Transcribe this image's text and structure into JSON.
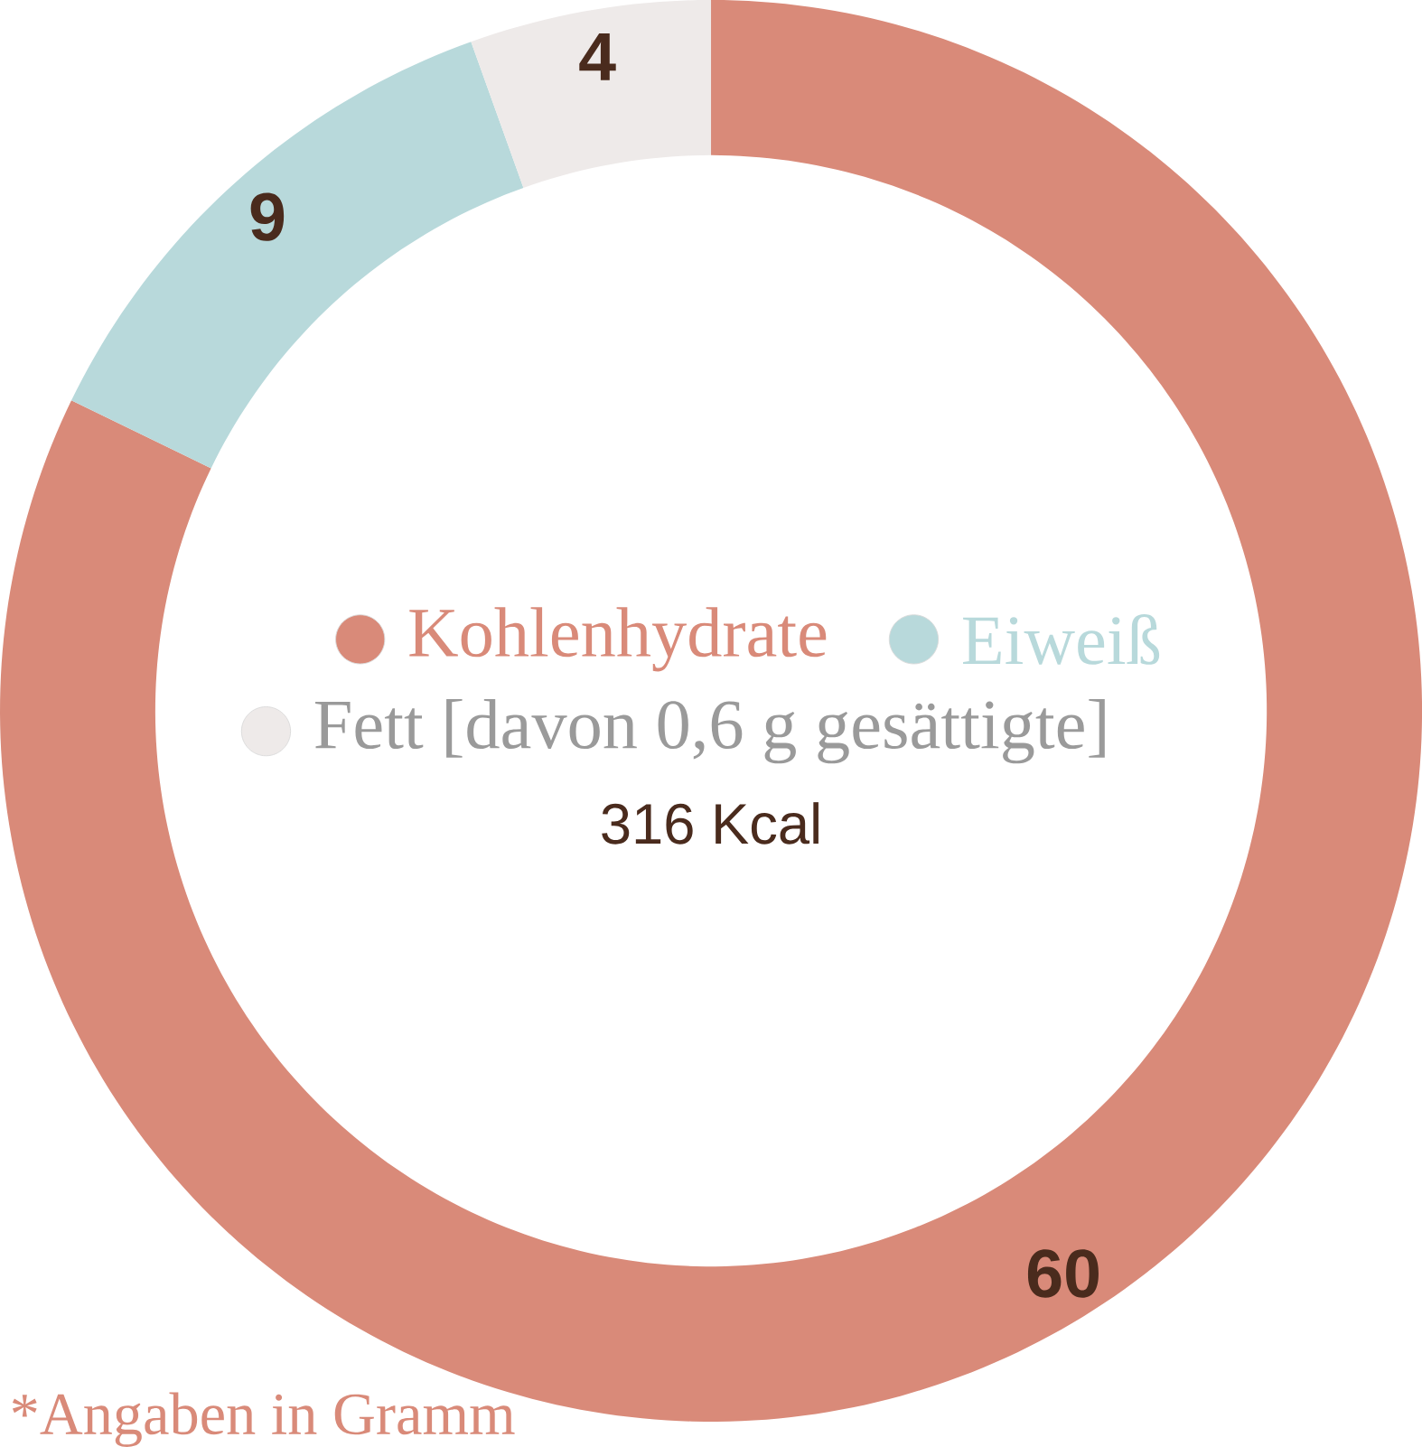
{
  "chart_data": {
    "type": "donut",
    "categories": [
      "Kohlenhydrate",
      "Eiweiß",
      "Fett  [davon 0,6 g gesättigte]"
    ],
    "values": [
      60,
      9,
      4
    ],
    "colors": [
      "#d98a79",
      "#b8d9db",
      "#eeeae9"
    ],
    "data_labels": true,
    "legend": "center",
    "annotations": [
      "316 Kcal",
      "*Angaben in Gramm"
    ]
  }
}
